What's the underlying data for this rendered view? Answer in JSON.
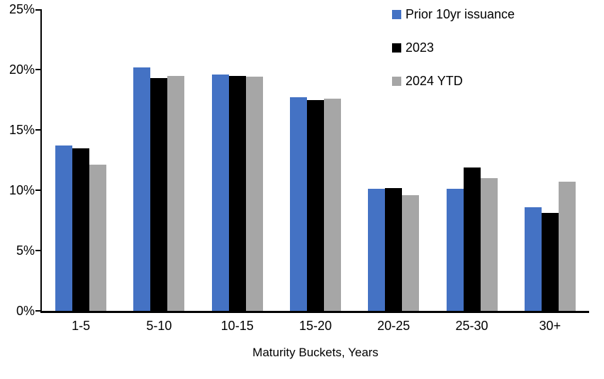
{
  "chart_data": {
    "type": "bar",
    "title": "",
    "xlabel": "Maturity Buckets, Years",
    "ylabel": "",
    "ylim": [
      0,
      25
    ],
    "y_tick_step": 5,
    "y_tick_labels": [
      "0%",
      "5%",
      "10%",
      "15%",
      "20%",
      "25%"
    ],
    "grid": false,
    "legend_position": "top-right",
    "background_color": "#ffffff",
    "axis_color": "#000000",
    "categories": [
      "1-5",
      "5-10",
      "10-15",
      "15-20",
      "20-25",
      "25-30",
      "30+"
    ],
    "series": [
      {
        "name": "Prior 10yr issuance",
        "color": "#4472C4",
        "values": [
          13.7,
          20.2,
          19.6,
          17.7,
          10.1,
          10.1,
          8.6
        ]
      },
      {
        "name": "2023",
        "color": "#000000",
        "values": [
          13.5,
          19.3,
          19.5,
          17.5,
          10.2,
          11.9,
          8.1
        ]
      },
      {
        "name": "2024 YTD",
        "color": "#A6A6A6",
        "values": [
          12.1,
          19.5,
          19.4,
          17.6,
          9.6,
          11.0,
          10.7
        ]
      }
    ]
  }
}
